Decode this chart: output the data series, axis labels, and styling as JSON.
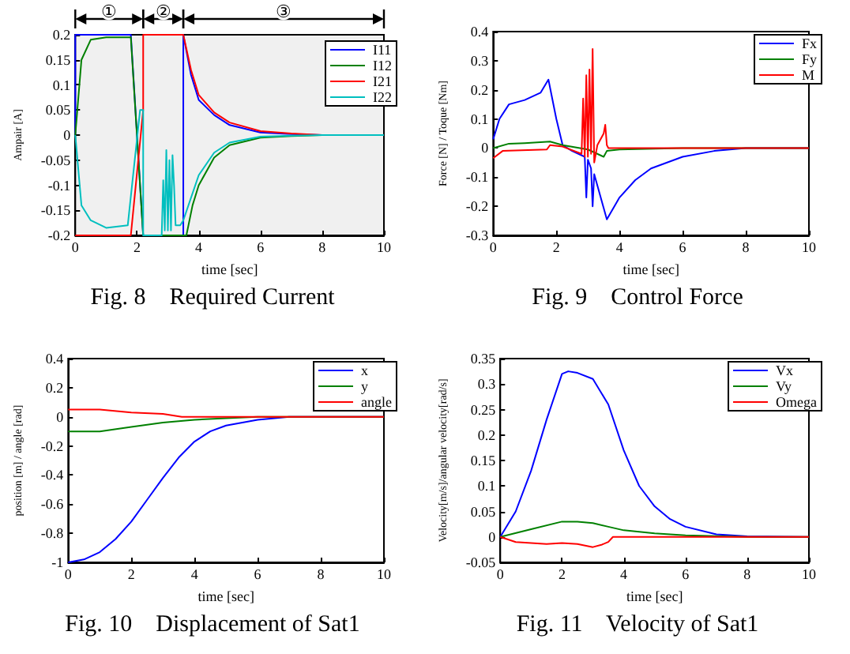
{
  "chart_data": [
    {
      "type": "line",
      "title": "Fig. 8    Required Current",
      "xlabel": "time [sec]",
      "ylabel": "Ampair [A]",
      "xlim": [
        0,
        10
      ],
      "ylim": [
        -0.2,
        0.2
      ],
      "xticks": [
        0,
        2,
        4,
        6,
        8,
        10
      ],
      "yticks": [
        -0.2,
        -0.15,
        -0.1,
        -0.05,
        0,
        0.05,
        0.1,
        0.15,
        0.2
      ],
      "grid": false,
      "legend": "top right",
      "marker": "none",
      "bands": [
        {
          "axis": "x",
          "from": 0,
          "to": 2.2,
          "label": "①"
        },
        {
          "axis": "x",
          "from": 2.2,
          "to": 3.5,
          "label": "②"
        },
        {
          "axis": "x",
          "from": 3.5,
          "to": 10,
          "label": "③"
        }
      ],
      "series": [
        {
          "name": "I11",
          "color": "#0000ff",
          "x": [
            0,
            0,
            1.8,
            2.2,
            3.5,
            3.5,
            3.75,
            4,
            4.5,
            5,
            6,
            7,
            8,
            10
          ],
          "values": [
            0,
            0.2,
            0.2,
            -0.2,
            -0.2,
            0.2,
            0.12,
            0.07,
            0.04,
            0.02,
            0.005,
            0.002,
            0,
            0
          ]
        },
        {
          "name": "I12",
          "color": "#008000",
          "x": [
            0,
            0.2,
            0.5,
            1,
            1.8,
            2.2,
            3.6,
            3.8,
            4,
            4.5,
            5,
            6,
            7,
            8,
            10
          ],
          "values": [
            0,
            0.15,
            0.19,
            0.195,
            0.195,
            -0.2,
            -0.2,
            -0.14,
            -0.1,
            -0.045,
            -0.02,
            -0.005,
            -0.002,
            0,
            0
          ]
        },
        {
          "name": "I21",
          "color": "#ff0000",
          "x": [
            0,
            1.8,
            2.2,
            2.2,
            3.5,
            3.75,
            4,
            4.5,
            5,
            6,
            7,
            8,
            10
          ],
          "values": [
            -0.2,
            -0.2,
            0.05,
            0.2,
            0.2,
            0.13,
            0.08,
            0.045,
            0.025,
            0.008,
            0.003,
            0,
            0
          ]
        },
        {
          "name": "I22",
          "color": "#00bfbf",
          "x": [
            0,
            0.2,
            0.5,
            1,
            1.7,
            2.1,
            2.2,
            2.2,
            2.8,
            2.85,
            2.9,
            2.95,
            3.0,
            3.05,
            3.1,
            3.15,
            3.2,
            3.25,
            3.4,
            3.5,
            4,
            4.5,
            5,
            6,
            7,
            8,
            10
          ],
          "values": [
            0,
            -0.14,
            -0.17,
            -0.185,
            -0.18,
            0.05,
            0.05,
            -0.2,
            -0.2,
            -0.09,
            -0.19,
            -0.03,
            -0.19,
            -0.05,
            -0.19,
            -0.04,
            -0.1,
            -0.18,
            -0.18,
            -0.17,
            -0.08,
            -0.035,
            -0.015,
            -0.003,
            -0.001,
            0,
            0
          ]
        }
      ]
    },
    {
      "type": "line",
      "title": "Fig. 9    Control Force",
      "xlabel": "time [sec]",
      "ylabel": "Force [N] / Toque [Nm]",
      "xlim": [
        0,
        10
      ],
      "ylim": [
        -0.3,
        0.4
      ],
      "xticks": [
        0,
        2,
        4,
        6,
        8,
        10
      ],
      "yticks": [
        -0.3,
        -0.2,
        -0.1,
        0,
        0.1,
        0.2,
        0.3,
        0.4
      ],
      "grid": false,
      "legend": "top right",
      "marker": "none",
      "series": [
        {
          "name": "Fx",
          "color": "#0000ff",
          "x": [
            0,
            0.2,
            0.5,
            1,
            1.5,
            1.75,
            2,
            2.2,
            2.5,
            2.9,
            2.95,
            3.0,
            3.1,
            3.15,
            3.2,
            3.6,
            4,
            4.5,
            5,
            6,
            7,
            8,
            10
          ],
          "values": [
            0.03,
            0.1,
            0.15,
            0.165,
            0.19,
            0.235,
            0.1,
            0.01,
            -0.01,
            -0.03,
            -0.17,
            -0.04,
            -0.07,
            -0.2,
            -0.09,
            -0.245,
            -0.17,
            -0.11,
            -0.07,
            -0.03,
            -0.01,
            0,
            0
          ]
        },
        {
          "name": "Fy",
          "color": "#008000",
          "x": [
            0,
            0.5,
            1,
            1.8,
            2.2,
            3,
            3.5,
            3.6,
            4,
            6,
            10
          ],
          "values": [
            0,
            0.015,
            0.017,
            0.022,
            0.01,
            -0.005,
            -0.03,
            -0.01,
            -0.005,
            0,
            0
          ]
        },
        {
          "name": "M",
          "color": "#ff0000",
          "x": [
            0,
            0.3,
            1.7,
            1.8,
            2.2,
            2.8,
            2.85,
            2.9,
            2.95,
            3.0,
            3.05,
            3.1,
            3.15,
            3.2,
            3.3,
            3.5,
            3.55,
            3.6,
            3.65,
            10
          ],
          "values": [
            -0.035,
            -0.01,
            -0.005,
            0.01,
            0.005,
            -0.02,
            0.17,
            -0.03,
            0.25,
            -0.03,
            0.27,
            -0.02,
            0.34,
            -0.05,
            0.01,
            0.05,
            0.08,
            0.01,
            0,
            0
          ]
        }
      ]
    },
    {
      "type": "line",
      "title": "Fig. 10    Displacement of Sat1",
      "xlabel": "time [sec]",
      "ylabel": "position [m] / angle [rad]",
      "xlim": [
        0,
        10
      ],
      "ylim": [
        -1,
        0.4
      ],
      "xticks": [
        0,
        2,
        4,
        6,
        8,
        10
      ],
      "yticks": [
        -1,
        -0.8,
        -0.6,
        -0.4,
        -0.2,
        0,
        0.2,
        0.4
      ],
      "grid": false,
      "legend": "top right",
      "marker": "none",
      "series": [
        {
          "name": "x",
          "color": "#0000ff",
          "x": [
            0,
            0.5,
            1,
            1.5,
            2,
            2.5,
            3,
            3.5,
            4,
            4.5,
            5,
            6,
            7,
            8,
            10
          ],
          "values": [
            -1,
            -0.98,
            -0.93,
            -0.84,
            -0.72,
            -0.57,
            -0.42,
            -0.28,
            -0.17,
            -0.1,
            -0.06,
            -0.02,
            0,
            0,
            0
          ]
        },
        {
          "name": "y",
          "color": "#008000",
          "x": [
            0,
            1,
            2,
            3,
            4,
            5,
            6,
            10
          ],
          "values": [
            -0.1,
            -0.1,
            -0.07,
            -0.04,
            -0.02,
            -0.01,
            0,
            0
          ]
        },
        {
          "name": "angle",
          "color": "#ff0000",
          "x": [
            0,
            1,
            2,
            3,
            3.6,
            10
          ],
          "values": [
            0.05,
            0.05,
            0.03,
            0.02,
            0,
            0
          ]
        }
      ]
    },
    {
      "type": "line",
      "title": "Fig. 11    Velocity of Sat1",
      "xlabel": "time [sec]",
      "ylabel": "Velocity[m/s]/angular velocity[rad/s]",
      "xlim": [
        0,
        10
      ],
      "ylim": [
        -0.05,
        0.35
      ],
      "xticks": [
        0,
        2,
        4,
        6,
        8,
        10
      ],
      "yticks": [
        -0.05,
        0,
        0.05,
        0.1,
        0.15,
        0.2,
        0.25,
        0.3,
        0.35
      ],
      "grid": false,
      "legend": "top right",
      "marker": "none",
      "series": [
        {
          "name": "Vx",
          "color": "#0000ff",
          "x": [
            0,
            0.5,
            1,
            1.5,
            2,
            2.2,
            2.5,
            3,
            3.5,
            4,
            4.5,
            5,
            5.5,
            6,
            7,
            8,
            10
          ],
          "values": [
            0,
            0.05,
            0.13,
            0.23,
            0.32,
            0.325,
            0.322,
            0.31,
            0.26,
            0.17,
            0.1,
            0.06,
            0.035,
            0.02,
            0.005,
            0.001,
            0
          ]
        },
        {
          "name": "Vy",
          "color": "#008000",
          "x": [
            0,
            1,
            2,
            2.5,
            3,
            3.5,
            4,
            5,
            6,
            8,
            10
          ],
          "values": [
            0,
            0.015,
            0.03,
            0.03,
            0.027,
            0.02,
            0.013,
            0.007,
            0.003,
            0,
            0
          ]
        },
        {
          "name": "Omega",
          "color": "#ff0000",
          "x": [
            0,
            0.5,
            1,
            1.5,
            2,
            2.5,
            3,
            3.3,
            3.5,
            3.65,
            10
          ],
          "values": [
            0,
            -0.01,
            -0.012,
            -0.014,
            -0.012,
            -0.014,
            -0.02,
            -0.015,
            -0.01,
            0,
            0
          ]
        }
      ]
    }
  ]
}
